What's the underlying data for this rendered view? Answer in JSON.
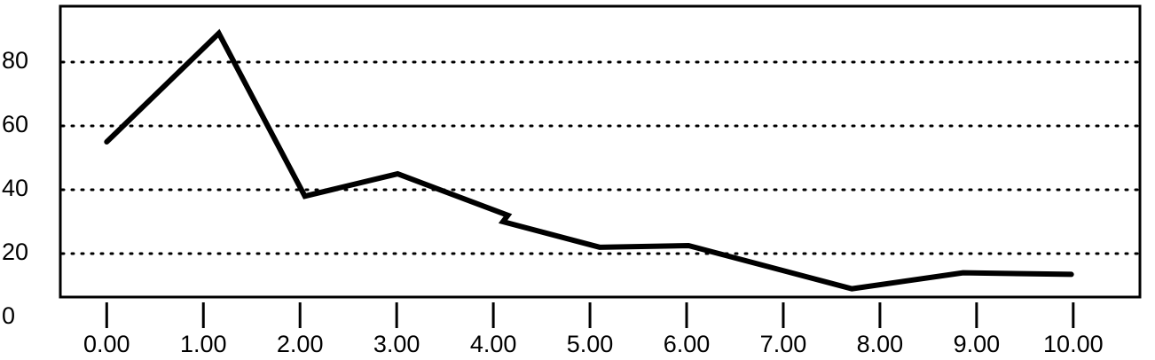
{
  "chart_data": {
    "type": "line",
    "x": [
      0,
      1.16,
      2.05,
      3.01,
      4.15,
      4.1,
      5.1,
      6.02,
      7.71,
      8.86,
      9.98
    ],
    "values": [
      55,
      89,
      38,
      45,
      32,
      30,
      22,
      22.5,
      9,
      14,
      13.5
    ],
    "color": "#000000",
    "xlim": [
      -0.48,
      10.69
    ],
    "xticks": [
      {
        "value": 0,
        "label": "0.00"
      },
      {
        "value": 1,
        "label": "1.00"
      },
      {
        "value": 2,
        "label": "2.00"
      },
      {
        "value": 3,
        "label": "3.00"
      },
      {
        "value": 4,
        "label": "4.00"
      },
      {
        "value": 5,
        "label": "5.00"
      },
      {
        "value": 6,
        "label": "6.00"
      },
      {
        "value": 7,
        "label": "7.00"
      },
      {
        "value": 8,
        "label": "8.00"
      },
      {
        "value": 9,
        "label": "9.00"
      },
      {
        "value": 10,
        "label": "10.00"
      }
    ],
    "ylim": [
      6.4,
      97.5
    ],
    "yticks": [
      0,
      20,
      40,
      60,
      80
    ],
    "grid": true
  }
}
